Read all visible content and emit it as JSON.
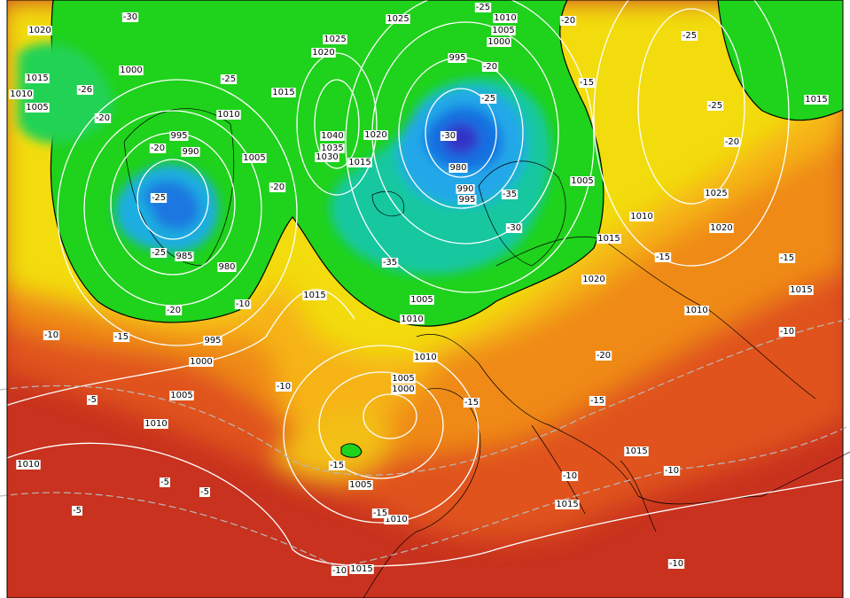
{
  "map": {
    "isobar_labels": [
      "1020",
      "1015",
      "1010",
      "1005",
      "1000",
      "995",
      "990",
      "985",
      "980",
      "1010",
      "1005",
      "1015",
      "1020",
      "1025",
      "1025",
      "1040",
      "1035",
      "1030",
      "1015",
      "1020",
      "995",
      "980",
      "990",
      "995",
      "1010",
      "1005",
      "1000",
      "1005",
      "1010",
      "1015",
      "1025",
      "1020",
      "1015",
      "1015",
      "1020",
      "1010",
      "1015",
      "995",
      "1000",
      "1005",
      "1010",
      "1010",
      "1005",
      "1010",
      "1010",
      "1005",
      "1000",
      "1005",
      "1010",
      "1015",
      "1015",
      "1015"
    ],
    "temperature_labels": [
      "-30",
      "-25",
      "-20",
      "-25",
      "-26",
      "-25",
      "-20",
      "-20",
      "-25",
      "-25",
      "-20",
      "-10",
      "-15",
      "-10",
      "-20",
      "-20",
      "-25",
      "-30",
      "-35",
      "-30",
      "-35",
      "-15",
      "-25",
      "-20",
      "-15",
      "-15",
      "-10",
      "-20",
      "-15",
      "-15",
      "-10",
      "-5",
      "-5",
      "-5",
      "-5",
      "-15",
      "-10",
      "-10",
      "-10",
      "-10",
      "-15"
    ]
  }
}
